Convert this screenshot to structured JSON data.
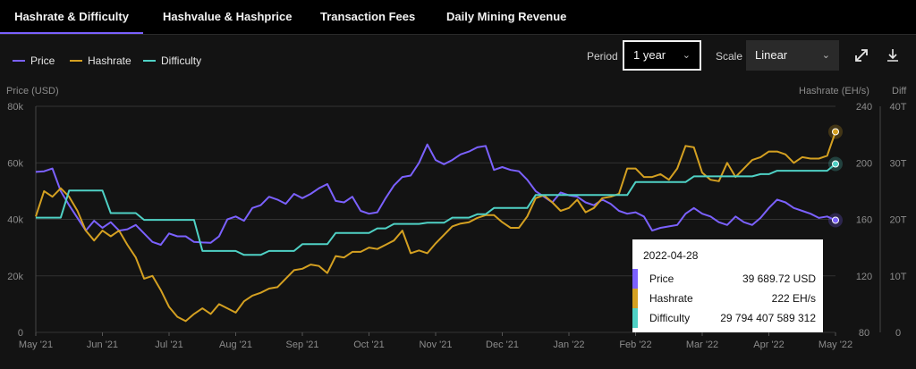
{
  "tabs": [
    {
      "label": "Hashrate & Difficulty",
      "active": true
    },
    {
      "label": "Hashvalue & Hashprice",
      "active": false
    },
    {
      "label": "Transaction Fees",
      "active": false
    },
    {
      "label": "Daily Mining Revenue",
      "active": false
    }
  ],
  "legend": [
    {
      "label": "Price",
      "color": "#7b61ff"
    },
    {
      "label": "Hashrate",
      "color": "#d4a021"
    },
    {
      "label": "Difficulty",
      "color": "#4fd1c5"
    }
  ],
  "controls": {
    "period_label": "Period",
    "period_value": "1 year",
    "scale_label": "Scale",
    "scale_value": "Linear",
    "expand_icon": "expand-icon",
    "download_icon": "download-icon"
  },
  "tooltip": {
    "date": "2022-04-28",
    "rows": [
      {
        "name": "Price",
        "value": "39 689.72 USD",
        "color": "#7b61ff"
      },
      {
        "name": "Hashrate",
        "value": "222 EH/s",
        "color": "#d4a021"
      },
      {
        "name": "Difficulty",
        "value": "29 794 407 589 312",
        "color": "#4fd1c5"
      }
    ]
  },
  "chart_data": {
    "type": "line",
    "y_left": {
      "title": "Price (USD)",
      "range": [
        0,
        80000
      ],
      "ticks": [
        "0",
        "20k",
        "40k",
        "60k",
        "80k"
      ]
    },
    "y_right1": {
      "title": "Hashrate (EH/s)",
      "range": [
        80,
        240
      ],
      "ticks": [
        "80",
        "120",
        "160",
        "200",
        "240"
      ]
    },
    "y_right2": {
      "title": "Diff",
      "range": [
        0,
        40
      ],
      "ticks": [
        "0",
        "10T",
        "20T",
        "30T",
        "40T"
      ]
    },
    "x_labels": [
      "May '21",
      "Jun '21",
      "Jul '21",
      "Aug '21",
      "Sep '21",
      "Oct '21",
      "Nov '21",
      "Dec '21",
      "Jan '22",
      "Feb '22",
      "Mar '22",
      "Apr '22",
      "May '22"
    ],
    "grid": true,
    "series": [
      {
        "name": "Price",
        "axis": "left",
        "color": "#7b61ff",
        "values": [
          56800,
          57000,
          58000,
          50000,
          45000,
          40500,
          36000,
          39500,
          37000,
          39000,
          36000,
          36500,
          38000,
          35000,
          32000,
          31000,
          35000,
          34000,
          34000,
          32000,
          31800,
          31700,
          34000,
          40000,
          41000,
          39500,
          44000,
          45000,
          48000,
          47000,
          45500,
          49000,
          47500,
          49000,
          51000,
          52500,
          46500,
          46000,
          48000,
          43000,
          42000,
          42500,
          47500,
          52000,
          55000,
          55500,
          60000,
          66500,
          61000,
          59500,
          61000,
          63000,
          64000,
          65500,
          66000,
          57500,
          58500,
          57500,
          57000,
          54000,
          50000,
          48000,
          46000,
          49500,
          48500,
          48000,
          46000,
          45000,
          47000,
          45500,
          43000,
          42000,
          42500,
          41000,
          36000,
          37000,
          37500,
          38000,
          42000,
          44000,
          42000,
          41000,
          39000,
          38000,
          41000,
          39000,
          38000,
          40500,
          44000,
          47000,
          46000,
          44000,
          43000,
          42000,
          40500,
          41000,
          39689
        ]
      },
      {
        "name": "Hashrate",
        "axis": "right1",
        "color": "#d4a021",
        "values": [
          162,
          180,
          176,
          182,
          176,
          166,
          152,
          145,
          152,
          148,
          152,
          142,
          133,
          118,
          120,
          110,
          98,
          91,
          88,
          93,
          97,
          93,
          100,
          97,
          94,
          102,
          106,
          108,
          111,
          112,
          118,
          124,
          125,
          128,
          127,
          122,
          134,
          133,
          137,
          137,
          140,
          139,
          142,
          145,
          152,
          136,
          138,
          136,
          143,
          149,
          155,
          157,
          158,
          161,
          163,
          163,
          158,
          154,
          154,
          162,
          175,
          177,
          172,
          166,
          168,
          174,
          165,
          168,
          175,
          176,
          178,
          196,
          196,
          190,
          190,
          192,
          188,
          196,
          212,
          211,
          193,
          188,
          187,
          200,
          190,
          196,
          202,
          204,
          208,
          208,
          206,
          200,
          204,
          203,
          203,
          205,
          222
        ]
      },
      {
        "name": "Difficulty",
        "axis": "right2",
        "color": "#4fd1c5",
        "values": [
          20.3,
          20.3,
          20.3,
          20.3,
          25.1,
          25.1,
          25.1,
          25.1,
          25.1,
          21.1,
          21.1,
          21.1,
          21.1,
          19.9,
          19.9,
          19.9,
          19.9,
          19.9,
          19.9,
          19.9,
          14.4,
          14.4,
          14.4,
          14.4,
          14.4,
          13.7,
          13.7,
          13.7,
          14.4,
          14.4,
          14.4,
          14.4,
          15.6,
          15.6,
          15.6,
          15.6,
          17.6,
          17.6,
          17.6,
          17.6,
          17.6,
          18.4,
          18.4,
          19.2,
          19.2,
          19.2,
          19.2,
          19.4,
          19.4,
          19.4,
          20.3,
          20.3,
          20.3,
          20.9,
          20.9,
          22.0,
          22.0,
          22.0,
          22.0,
          22.0,
          24.3,
          24.3,
          24.3,
          24.3,
          24.3,
          24.3,
          24.3,
          24.3,
          24.3,
          24.3,
          24.3,
          24.3,
          26.6,
          26.6,
          26.6,
          26.6,
          26.6,
          26.6,
          26.6,
          27.6,
          27.6,
          27.6,
          27.6,
          27.6,
          27.6,
          27.6,
          27.6,
          28.0,
          28.0,
          28.6,
          28.6,
          28.6,
          28.6,
          28.6,
          28.6,
          28.6,
          29.8
        ]
      }
    ]
  }
}
